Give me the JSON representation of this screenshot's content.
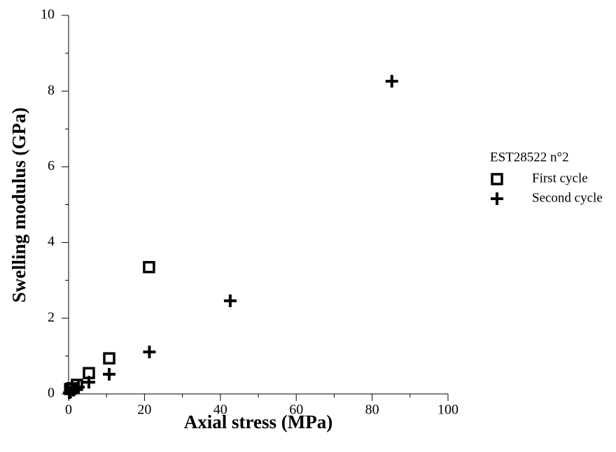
{
  "chart_data": {
    "type": "scatter",
    "x_label": "Axial stress (MPa)",
    "y_label": "Swelling modulus (GPa)",
    "legend_title": "EST28522 n°2",
    "xlim": [
      0,
      100
    ],
    "xticks": [
      0,
      20,
      40,
      60,
      80,
      100
    ],
    "ylim": [
      0,
      10
    ],
    "yticks": [
      0,
      2,
      4,
      6,
      8,
      10
    ],
    "grid": false,
    "series": [
      {
        "name": "First cycle",
        "marker": "square",
        "color": "#000000",
        "x": [
          0.4,
          0.9,
          2.2,
          5.35,
          10.7,
          21.2
        ],
        "values": [
          0.13,
          0.15,
          0.24,
          0.55,
          0.94,
          3.35
        ]
      },
      {
        "name": "Second cycle",
        "marker": "plus",
        "color": "#000000",
        "x": [
          0.2,
          0.5,
          1.3,
          2.6,
          5.35,
          10.7,
          21.3,
          42.6,
          85.2
        ],
        "values": [
          0.03,
          0.05,
          0.1,
          0.18,
          0.31,
          0.52,
          1.11,
          2.46,
          8.26
        ]
      }
    ]
  }
}
